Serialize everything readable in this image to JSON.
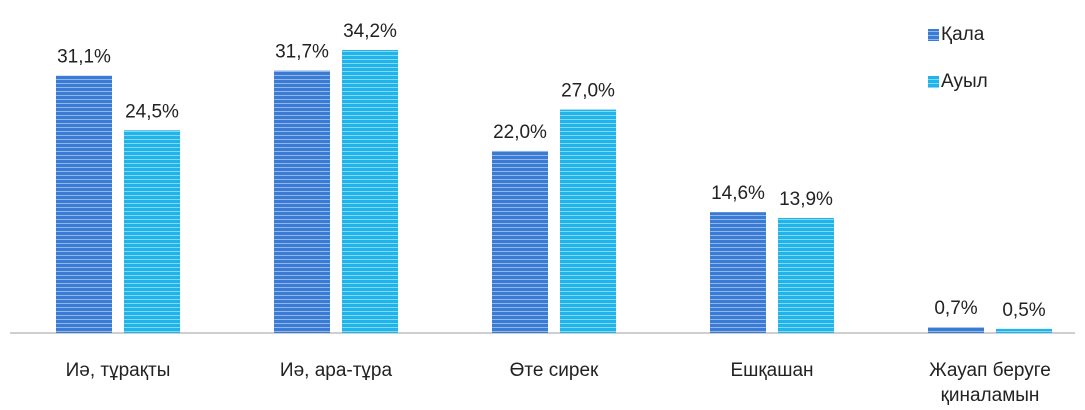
{
  "chart_data": {
    "type": "bar",
    "categories": [
      "Иә, тұрақты",
      "Иә, ара-тұра",
      "Өте сирек",
      "Ешқашан",
      "Жауап беруге қиналамын"
    ],
    "series": [
      {
        "name": "Қала",
        "color": "#3a7bd5",
        "values": [
          31.1,
          31.7,
          22.0,
          14.6,
          0.7
        ],
        "value_labels": [
          "31,1%",
          "31,7%",
          "22,0%",
          "14,6%",
          "0,7%"
        ]
      },
      {
        "name": "Ауыл",
        "color": "#1fb4ea",
        "values": [
          24.5,
          34.2,
          27.0,
          13.9,
          0.5
        ],
        "value_labels": [
          "24,5%",
          "34,2%",
          "27,0%",
          "13,9%",
          "0,5%"
        ]
      }
    ],
    "ylim": [
      0,
      40
    ],
    "legend": "top-right"
  }
}
